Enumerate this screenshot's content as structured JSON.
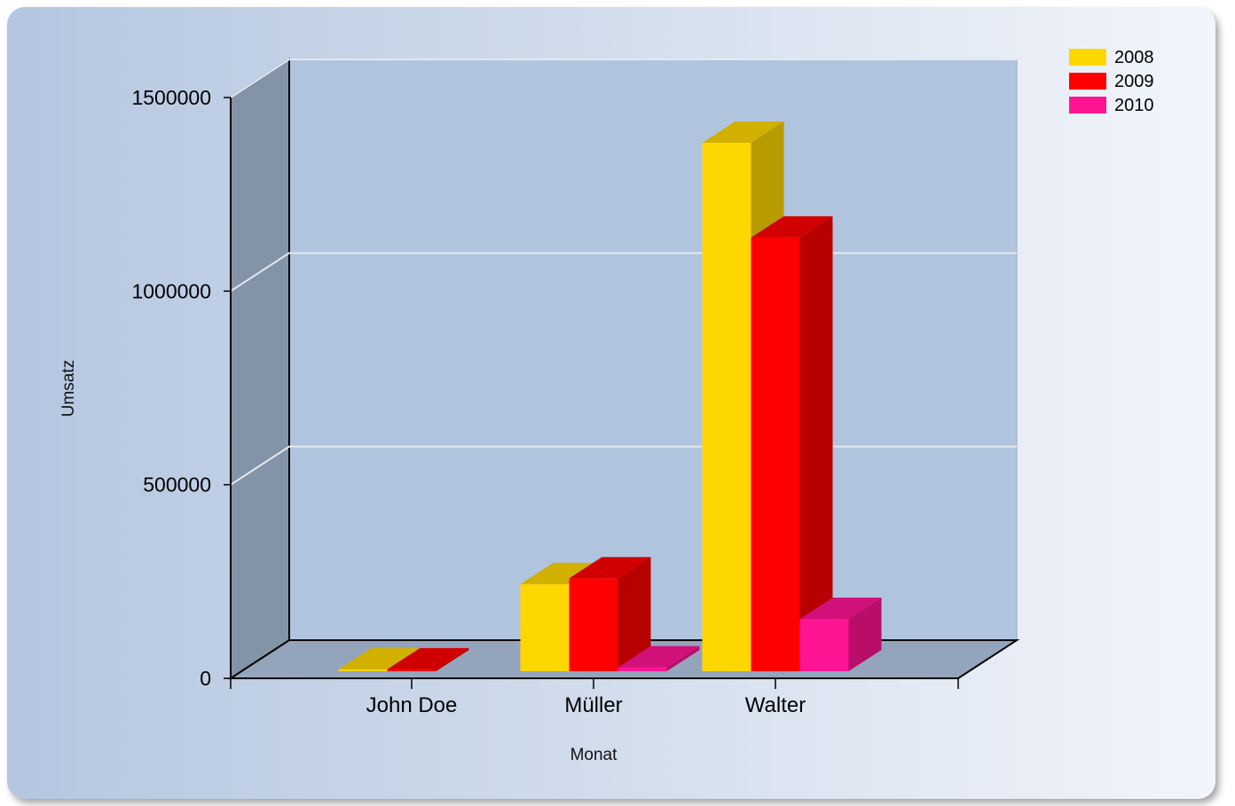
{
  "chart_data": {
    "type": "bar",
    "style": "3d-clustered",
    "categories": [
      "John Doe",
      "Müller",
      "Walter"
    ],
    "series": [
      {
        "name": "2008",
        "color": "#ffd700",
        "values": [
          5000,
          225000,
          1365000
        ]
      },
      {
        "name": "2009",
        "color": "#ff0000",
        "values": [
          5000,
          240000,
          1120000
        ]
      },
      {
        "name": "2010",
        "color": "#ff1493",
        "values": [
          0,
          10000,
          135000
        ]
      }
    ],
    "title": "",
    "xlabel": "Monat",
    "ylabel": "Umsatz",
    "ylim": [
      0,
      1500000
    ],
    "yticks": [
      0,
      500000,
      1000000,
      1500000
    ],
    "ytick_labels": [
      "0",
      "500000",
      "1000000",
      "1500000"
    ],
    "grid": true,
    "legend_position": "top-right"
  }
}
